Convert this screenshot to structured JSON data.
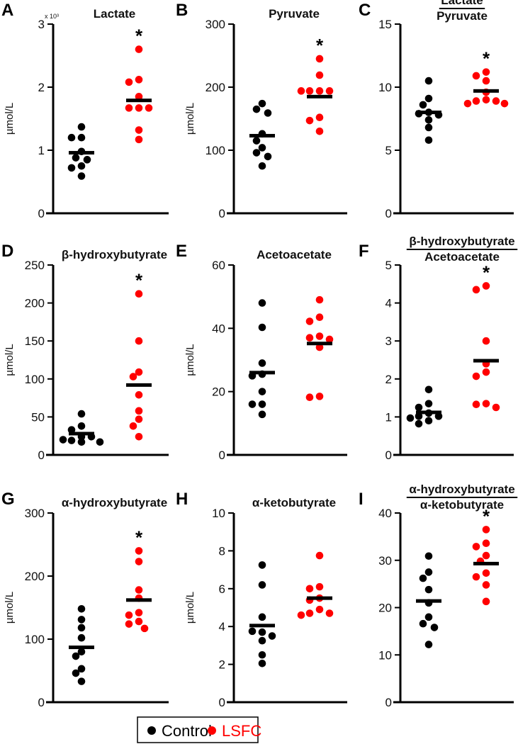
{
  "colors": {
    "control": "#000000",
    "lsfc": "#ff0000",
    "axis": "#000000"
  },
  "legend": [
    {
      "label": "Control",
      "color": "#000000"
    },
    {
      "label": "LSFC",
      "color": "#ff0000"
    }
  ],
  "chart_data": [
    {
      "type": "scatter",
      "panel": "A",
      "title": "Lactate",
      "ylabel": "µmol/L",
      "multiplier": "x 10³",
      "ylim": [
        0,
        3
      ],
      "ticks": [
        0,
        1,
        2,
        3
      ],
      "series": [
        {
          "name": "Control",
          "values": [
            1.37,
            1.2,
            1.2,
            0.98,
            0.88,
            0.85,
            0.75,
            0.72,
            0.59
          ],
          "mean": 0.96
        },
        {
          "name": "LSFC",
          "values": [
            2.6,
            2.12,
            2.08,
            1.85,
            1.67,
            1.67,
            1.67,
            1.32,
            1.17
          ],
          "mean": 1.79
        }
      ],
      "significance": "*"
    },
    {
      "type": "scatter",
      "panel": "B",
      "title": "Pyruvate",
      "ylabel": "µmol/L",
      "ylim": [
        0,
        300
      ],
      "ticks": [
        0,
        100,
        200,
        300
      ],
      "series": [
        {
          "name": "Control",
          "values": [
            174,
            165,
            159,
            126,
            115,
            104,
            96,
            90,
            75
          ],
          "mean": 123
        },
        {
          "name": "LSFC",
          "values": [
            245,
            219,
            194,
            194,
            194,
            194,
            152,
            147,
            130
          ],
          "mean": 185
        }
      ],
      "significance": "*"
    },
    {
      "type": "scatter",
      "panel": "C",
      "title_numerator": "Lactate",
      "title_denominator": "Pyruvate",
      "ylim": [
        0,
        15
      ],
      "ticks": [
        0,
        5,
        10,
        15
      ],
      "series": [
        {
          "name": "Control",
          "values": [
            10.5,
            9.1,
            8.6,
            8.0,
            7.9,
            7.8,
            7.4,
            6.8,
            5.8
          ],
          "mean": 8.0
        },
        {
          "name": "LSFC",
          "values": [
            11.2,
            10.9,
            10.5,
            9.6,
            9.0,
            8.9,
            8.9,
            8.7,
            8.7
          ],
          "mean": 9.7
        }
      ],
      "significance": "*"
    },
    {
      "type": "scatter",
      "panel": "D",
      "title": "β-hydroxybutyrate",
      "ylabel": "µmol/L",
      "ylim": [
        0,
        250
      ],
      "ticks": [
        0,
        50,
        100,
        150,
        200,
        250
      ],
      "series": [
        {
          "name": "Control",
          "values": [
            54,
            38,
            33,
            24,
            24,
            19,
            20,
            17,
            17
          ],
          "mean": 28
        },
        {
          "name": "LSFC",
          "values": [
            212,
            150,
            109,
            103,
            79,
            58,
            47,
            38,
            24
          ],
          "mean": 92
        }
      ],
      "significance": "*"
    },
    {
      "type": "scatter",
      "panel": "E",
      "title": "Acetoacetate",
      "ylabel": "µmol/L",
      "ylim": [
        0,
        60
      ],
      "ticks": [
        0,
        20,
        40,
        60
      ],
      "series": [
        {
          "name": "Control",
          "values": [
            48,
            40.3,
            29,
            25.5,
            25,
            20,
            16,
            16,
            12.8
          ],
          "mean": 26
        },
        {
          "name": "LSFC",
          "values": [
            49,
            43.5,
            42.2,
            37.5,
            37,
            36.5,
            34,
            18.5,
            18.2
          ],
          "mean": 35.2
        }
      ],
      "significance": ""
    },
    {
      "type": "scatter",
      "panel": "F",
      "title_numerator": "β-hydroxybutyrate",
      "title_denominator": "Acetoacetate",
      "ylim": [
        0,
        5
      ],
      "ticks": [
        0,
        1,
        2,
        3,
        4,
        5
      ],
      "series": [
        {
          "name": "Control",
          "values": [
            1.72,
            1.35,
            1.25,
            1.1,
            1.02,
            1.02,
            0.97,
            0.9,
            0.82
          ],
          "mean": 1.12
        },
        {
          "name": "LSFC",
          "values": [
            4.45,
            4.35,
            3.0,
            2.4,
            2.18,
            2.07,
            1.35,
            1.33,
            1.25
          ],
          "mean": 2.48
        }
      ],
      "significance": "*"
    },
    {
      "type": "scatter",
      "panel": "G",
      "title": "α-hydroxybutyrate",
      "ylabel": "µmol/L",
      "ylim": [
        0,
        300
      ],
      "ticks": [
        0,
        100,
        200,
        300
      ],
      "series": [
        {
          "name": "Control",
          "values": [
            148,
            131,
            118,
            102,
            80,
            73,
            53,
            46,
            33
          ],
          "mean": 87
        },
        {
          "name": "LSFC",
          "values": [
            240,
            223,
            178,
            165,
            142,
            138,
            128,
            124,
            117
          ],
          "mean": 162
        }
      ],
      "significance": "*"
    },
    {
      "type": "scatter",
      "panel": "H",
      "title": "α-ketobutyrate",
      "ylabel": "µmol/L",
      "ylim": [
        0,
        10
      ],
      "ticks": [
        0,
        2,
        4,
        6,
        8,
        10
      ],
      "series": [
        {
          "name": "Control",
          "values": [
            7.25,
            6.2,
            4.5,
            3.7,
            3.75,
            3.5,
            3.25,
            2.5,
            2.05
          ],
          "mean": 4.05
        },
        {
          "name": "LSFC",
          "values": [
            7.75,
            6.1,
            6.0,
            5.5,
            5.4,
            4.9,
            4.7,
            4.7,
            4.6
          ],
          "mean": 5.5
        }
      ],
      "significance": ""
    },
    {
      "type": "scatter",
      "panel": "I",
      "title_numerator": "α-hydroxybutyrate",
      "title_denominator": "α-ketobutyrate",
      "ylim": [
        0,
        40
      ],
      "ticks": [
        0,
        10,
        20,
        30,
        40
      ],
      "series": [
        {
          "name": "Control",
          "values": [
            30.9,
            27.5,
            26.2,
            23.8,
            21,
            18,
            16.6,
            15.8,
            12.2
          ],
          "mean": 21.4
        },
        {
          "name": "LSFC",
          "values": [
            36.5,
            33.6,
            32.9,
            31,
            29.8,
            27.3,
            26.5,
            24.8,
            21.3
          ],
          "mean": 29.3
        }
      ],
      "significance": "*"
    }
  ]
}
